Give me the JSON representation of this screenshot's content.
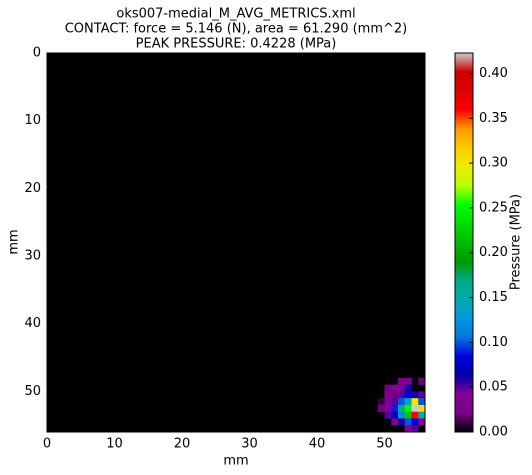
{
  "chart_data": {
    "type": "heatmap",
    "title": [
      "oks007-medial_M_AVG_METRICS.xml",
      "CONTACT: force = 5.146 (N), area = 61.290 (mm^2)",
      "PEAK PRESSURE: 0.4228 (MPa)"
    ],
    "x_label": "mm",
    "y_label": "mm",
    "colorbar_label": "Pressure (MPa)",
    "colormap": "nipy_spectral",
    "background": "#000000",
    "xlim": [
      0,
      56
    ],
    "ylim": [
      0,
      56
    ],
    "y_inverted": true,
    "xticks": [
      0,
      10,
      20,
      30,
      40,
      50
    ],
    "yticks": [
      0,
      10,
      20,
      30,
      40,
      50
    ],
    "clim": [
      0,
      0.4228
    ],
    "cticks": [
      {
        "value": 0,
        "label": "0.00"
      },
      {
        "value": 0.05,
        "label": "0.05"
      },
      {
        "value": 0.1,
        "label": "0.10"
      },
      {
        "value": 0.15,
        "label": "0.15"
      },
      {
        "value": 0.2,
        "label": "0.20"
      },
      {
        "value": 0.25,
        "label": "0.25"
      },
      {
        "value": 0.3,
        "label": "0.30"
      },
      {
        "value": 0.35,
        "label": "0.35"
      },
      {
        "value": 0.4,
        "label": "0.40"
      }
    ],
    "cells": [
      {
        "x": 52,
        "y": 48,
        "value": 0.03
      },
      {
        "x": 53,
        "y": 48,
        "value": 0.03
      },
      {
        "x": 55,
        "y": 48,
        "value": 0.02
      },
      {
        "x": 50,
        "y": 49,
        "value": 0.02
      },
      {
        "x": 51,
        "y": 49,
        "value": 0.04
      },
      {
        "x": 52,
        "y": 49,
        "value": 0.03
      },
      {
        "x": 53,
        "y": 49,
        "value": 0.06
      },
      {
        "x": 50,
        "y": 50,
        "value": 0.03
      },
      {
        "x": 51,
        "y": 50,
        "value": 0.02
      },
      {
        "x": 52,
        "y": 50,
        "value": 0.05
      },
      {
        "x": 53,
        "y": 50,
        "value": 0.08
      },
      {
        "x": 54,
        "y": 50,
        "value": 0.06
      },
      {
        "x": 55,
        "y": 50,
        "value": 0.05
      },
      {
        "x": 49,
        "y": 51,
        "value": 0.01
      },
      {
        "x": 50,
        "y": 51,
        "value": 0.03
      },
      {
        "x": 51,
        "y": 51,
        "value": 0.05
      },
      {
        "x": 52,
        "y": 51,
        "value": 0.1
      },
      {
        "x": 53,
        "y": 51,
        "value": 0.14
      },
      {
        "x": 54,
        "y": 51,
        "value": 0.3
      },
      {
        "x": 55,
        "y": 51,
        "value": 0.1
      },
      {
        "x": 49,
        "y": 52,
        "value": 0.02
      },
      {
        "x": 50,
        "y": 52,
        "value": 0.04
      },
      {
        "x": 51,
        "y": 52,
        "value": 0.09
      },
      {
        "x": 52,
        "y": 52,
        "value": 0.17
      },
      {
        "x": 53,
        "y": 52,
        "value": 0.25
      },
      {
        "x": 54,
        "y": 52,
        "value": 0.4228
      },
      {
        "x": 55,
        "y": 52,
        "value": 0.31
      },
      {
        "x": 50,
        "y": 53,
        "value": 0.05
      },
      {
        "x": 51,
        "y": 53,
        "value": 0.07
      },
      {
        "x": 52,
        "y": 53,
        "value": 0.12
      },
      {
        "x": 53,
        "y": 53,
        "value": 0.22
      },
      {
        "x": 54,
        "y": 53,
        "value": 0.36
      },
      {
        "x": 55,
        "y": 53,
        "value": 0.15
      },
      {
        "x": 51,
        "y": 54,
        "value": 0.03
      },
      {
        "x": 52,
        "y": 54,
        "value": 0.06
      },
      {
        "x": 53,
        "y": 54,
        "value": 0.1
      },
      {
        "x": 54,
        "y": 54,
        "value": 0.08
      },
      {
        "x": 55,
        "y": 54,
        "value": 0.04
      },
      {
        "x": 53,
        "y": 55,
        "value": 0.04
      },
      {
        "x": 54,
        "y": 55,
        "value": 0.05
      }
    ]
  }
}
